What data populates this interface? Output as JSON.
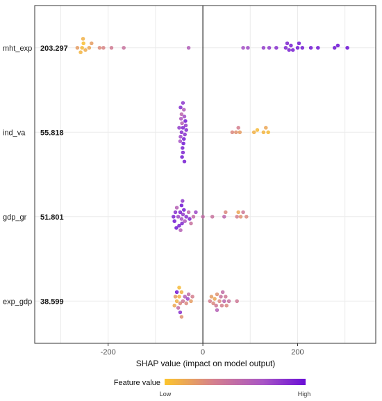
{
  "chart_data": {
    "type": "scatter",
    "subtype": "shap-beeswarm",
    "xlabel": "SHAP value (impact on model output)",
    "xlim": [
      -355,
      365
    ],
    "x_ticks": [
      -200,
      0,
      200
    ],
    "x_tick_labels": [
      "-200",
      "0",
      "200"
    ],
    "grid": true,
    "legend": {
      "title": "Feature value",
      "low_label": "Low",
      "high_label": "High",
      "placement": "bottom",
      "colors": [
        "#fcc52d",
        "#d47f8e",
        "#a855c5",
        "#6a0fd6"
      ]
    },
    "features": [
      {
        "name": "mht_exp",
        "importance": "203.297",
        "points": [
          {
            "x": -255,
            "v": 0.05
          },
          {
            "x": -252,
            "v": 0.03
          },
          {
            "x": -258,
            "v": 0.08
          },
          {
            "x": -265,
            "v": 0.2
          },
          {
            "x": -253,
            "v": 0.1
          },
          {
            "x": -248,
            "v": 0.12
          },
          {
            "x": -240,
            "v": 0.15
          },
          {
            "x": -235,
            "v": 0.2
          },
          {
            "x": -218,
            "v": 0.28
          },
          {
            "x": -210,
            "v": 0.32
          },
          {
            "x": -193,
            "v": 0.38
          },
          {
            "x": -167,
            "v": 0.45
          },
          {
            "x": -30,
            "v": 0.62
          },
          {
            "x": 85,
            "v": 0.72
          },
          {
            "x": 95,
            "v": 0.74
          },
          {
            "x": 128,
            "v": 0.8
          },
          {
            "x": 140,
            "v": 0.82
          },
          {
            "x": 155,
            "v": 0.86
          },
          {
            "x": 175,
            "v": 0.9
          },
          {
            "x": 178,
            "v": 0.9
          },
          {
            "x": 182,
            "v": 0.92
          },
          {
            "x": 186,
            "v": 0.93
          },
          {
            "x": 190,
            "v": 0.93
          },
          {
            "x": 200,
            "v": 0.94
          },
          {
            "x": 203,
            "v": 0.95
          },
          {
            "x": 210,
            "v": 0.95
          },
          {
            "x": 228,
            "v": 0.96
          },
          {
            "x": 243,
            "v": 0.96
          },
          {
            "x": 278,
            "v": 0.97
          },
          {
            "x": 285,
            "v": 0.98
          },
          {
            "x": 305,
            "v": 0.99
          }
        ]
      },
      {
        "name": "ind_va",
        "importance": "55.818",
        "points": [
          {
            "x": -45,
            "v": 0.85
          },
          {
            "x": -42,
            "v": 0.9
          },
          {
            "x": -47,
            "v": 0.75
          },
          {
            "x": -40,
            "v": 0.95
          },
          {
            "x": -44,
            "v": 0.6
          },
          {
            "x": -38,
            "v": 0.85
          },
          {
            "x": -48,
            "v": 0.7
          },
          {
            "x": -41,
            "v": 0.95
          },
          {
            "x": -35,
            "v": 0.88
          },
          {
            "x": -46,
            "v": 0.65
          },
          {
            "x": -43,
            "v": 0.92
          },
          {
            "x": -39,
            "v": 0.72
          },
          {
            "x": -50,
            "v": 0.8
          },
          {
            "x": -37,
            "v": 0.97
          },
          {
            "x": -45,
            "v": 0.55
          },
          {
            "x": -42,
            "v": 0.9
          },
          {
            "x": -40,
            "v": 0.62
          },
          {
            "x": -44,
            "v": 0.95
          },
          {
            "x": -36,
            "v": 0.78
          },
          {
            "x": -47,
            "v": 0.88
          },
          {
            "x": -42,
            "v": 0.83
          },
          {
            "x": -39,
            "v": 0.93
          },
          {
            "x": 62,
            "v": 0.3
          },
          {
            "x": 70,
            "v": 0.25
          },
          {
            "x": 75,
            "v": 0.35
          },
          {
            "x": 78,
            "v": 0.2
          },
          {
            "x": 108,
            "v": 0.1
          },
          {
            "x": 115,
            "v": 0.05
          },
          {
            "x": 128,
            "v": 0.08
          },
          {
            "x": 133,
            "v": 0.15
          },
          {
            "x": 138,
            "v": 0.05
          }
        ]
      },
      {
        "name": "gdp_gr",
        "importance": "51.801",
        "points": [
          {
            "x": -62,
            "v": 0.9
          },
          {
            "x": -58,
            "v": 0.85
          },
          {
            "x": -60,
            "v": 0.95
          },
          {
            "x": -55,
            "v": 0.6
          },
          {
            "x": -52,
            "v": 0.75
          },
          {
            "x": -48,
            "v": 0.9
          },
          {
            "x": -45,
            "v": 0.7
          },
          {
            "x": -44,
            "v": 0.88
          },
          {
            "x": -42,
            "v": 0.8
          },
          {
            "x": -40,
            "v": 0.95
          },
          {
            "x": -38,
            "v": 0.65
          },
          {
            "x": -35,
            "v": 0.85
          },
          {
            "x": -30,
            "v": 0.55
          },
          {
            "x": -28,
            "v": 0.9
          },
          {
            "x": -25,
            "v": 0.45
          },
          {
            "x": -20,
            "v": 0.5
          },
          {
            "x": -15,
            "v": 0.75
          },
          {
            "x": -45,
            "v": 0.98
          },
          {
            "x": -50,
            "v": 0.92
          },
          {
            "x": -47,
            "v": 0.6
          },
          {
            "x": -56,
            "v": 0.97
          },
          {
            "x": -43,
            "v": 0.82
          },
          {
            "x": 0,
            "v": 0.5
          },
          {
            "x": 20,
            "v": 0.45
          },
          {
            "x": 45,
            "v": 0.55
          },
          {
            "x": 48,
            "v": 0.3
          },
          {
            "x": 72,
            "v": 0.35
          },
          {
            "x": 75,
            "v": 0.15
          },
          {
            "x": 80,
            "v": 0.25
          },
          {
            "x": 85,
            "v": 0.4
          },
          {
            "x": 92,
            "v": 0.3
          }
        ]
      },
      {
        "name": "exp_gdp",
        "importance": "38.599",
        "points": [
          {
            "x": -55,
            "v": 0.1
          },
          {
            "x": -50,
            "v": 0.08
          },
          {
            "x": -48,
            "v": 0.3
          },
          {
            "x": -52,
            "v": 0.5
          },
          {
            "x": -58,
            "v": 0.2
          },
          {
            "x": -45,
            "v": 0.1
          },
          {
            "x": -60,
            "v": 0.15
          },
          {
            "x": -55,
            "v": 0.95
          },
          {
            "x": -48,
            "v": 0.85
          },
          {
            "x": -42,
            "v": 0.4
          },
          {
            "x": -38,
            "v": 0.6
          },
          {
            "x": -35,
            "v": 0.3
          },
          {
            "x": -32,
            "v": 0.75
          },
          {
            "x": -30,
            "v": 0.5
          },
          {
            "x": -25,
            "v": 0.2
          },
          {
            "x": -22,
            "v": 0.35
          },
          {
            "x": -50,
            "v": 0.05
          },
          {
            "x": -45,
            "v": 0.25
          },
          {
            "x": 15,
            "v": 0.35
          },
          {
            "x": 18,
            "v": 0.2
          },
          {
            "x": 22,
            "v": 0.3
          },
          {
            "x": 25,
            "v": 0.15
          },
          {
            "x": 28,
            "v": 0.4
          },
          {
            "x": 30,
            "v": 0.25
          },
          {
            "x": 35,
            "v": 0.3
          },
          {
            "x": 38,
            "v": 0.45
          },
          {
            "x": 40,
            "v": 0.35
          },
          {
            "x": 42,
            "v": 0.5
          },
          {
            "x": 45,
            "v": 0.55
          },
          {
            "x": 48,
            "v": 0.4
          },
          {
            "x": 50,
            "v": 0.3
          },
          {
            "x": 55,
            "v": 0.45
          },
          {
            "x": 72,
            "v": 0.4
          },
          {
            "x": 30,
            "v": 0.6
          }
        ]
      }
    ]
  }
}
